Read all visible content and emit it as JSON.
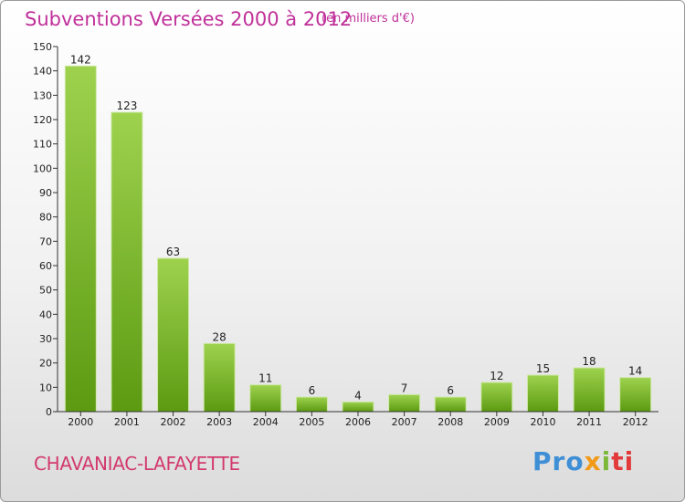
{
  "chart_data": {
    "type": "bar",
    "title": "Subventions Versées 2000 à 2012",
    "unit_note": "(en milliers d'€)",
    "categories": [
      "2000",
      "2001",
      "2002",
      "2003",
      "2004",
      "2005",
      "2006",
      "2007",
      "2008",
      "2009",
      "2010",
      "2011",
      "2012"
    ],
    "values": [
      142,
      123,
      63,
      28,
      11,
      6,
      4,
      7,
      6,
      12,
      15,
      18,
      14
    ],
    "ylim": [
      0,
      150
    ],
    "yticks": [
      0,
      10,
      20,
      30,
      40,
      50,
      60,
      70,
      80,
      90,
      100,
      110,
      120,
      130,
      140,
      150
    ],
    "grid": false,
    "colors": {
      "bar_top": "#9ed24e",
      "bar_bottom": "#5c9a12",
      "title": "#c0309a"
    }
  },
  "footer": {
    "town": "CHAVANIAC-LAFAYETTE",
    "logo": {
      "part1": "Pro",
      "part2": "x",
      "part3": "i",
      "part4": "ti"
    }
  }
}
